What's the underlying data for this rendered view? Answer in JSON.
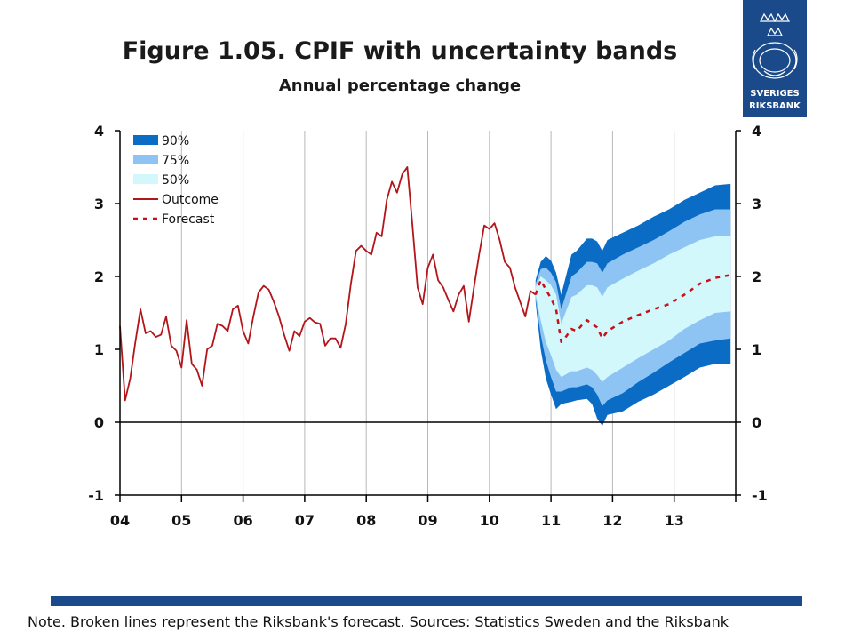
{
  "header": {
    "title": "Figure 1.05. CPIF with uncertainty bands",
    "subtitle": "Annual percentage change"
  },
  "logo": {
    "icon": "riksbank-crest-icon",
    "line1": "SVERIGES",
    "line2": "RIKSBANK"
  },
  "footer": {
    "note": "Note. Broken lines represent the Riksbank's forecast.  Sources: Statistics Sweden and the Riksbank",
    "bar_color": "#1b4a8a"
  },
  "chart_data": {
    "type": "line",
    "title": "Figure 1.05. CPIF with uncertainty bands",
    "subtitle": "Annual percentage change",
    "x_tick_labels": [
      "04",
      "05",
      "06",
      "07",
      "08",
      "09",
      "10",
      "11",
      "12",
      "13"
    ],
    "y_ticks": [
      -1,
      0,
      1,
      2,
      3,
      4
    ],
    "ylim": [
      -1,
      4
    ],
    "xlim": [
      "2004-01",
      "2013-12"
    ],
    "legend_position": "top-left",
    "grid": "vertical",
    "legend": [
      "90%",
      "75%",
      "50%",
      "Outcome",
      "Forecast"
    ],
    "colors": {
      "band90": "#0a6cc4",
      "band75": "#8ec4f4",
      "band50": "#d2f8fc",
      "outcome": "#b2151a",
      "forecast": "#c8101a"
    },
    "series": [
      {
        "name": "Outcome",
        "style": "solid",
        "points": [
          [
            "2004-01",
            1.32
          ],
          [
            "2004-02",
            0.3
          ],
          [
            "2004-03",
            0.6
          ],
          [
            "2004-04",
            1.1
          ],
          [
            "2004-05",
            1.55
          ],
          [
            "2004-06",
            1.22
          ],
          [
            "2004-07",
            1.25
          ],
          [
            "2004-08",
            1.17
          ],
          [
            "2004-09",
            1.2
          ],
          [
            "2004-10",
            1.45
          ],
          [
            "2004-11",
            1.05
          ],
          [
            "2004-12",
            0.98
          ],
          [
            "2005-01",
            0.75
          ],
          [
            "2005-02",
            1.4
          ],
          [
            "2005-03",
            0.8
          ],
          [
            "2005-04",
            0.72
          ],
          [
            "2005-05",
            0.5
          ],
          [
            "2005-06",
            1.0
          ],
          [
            "2005-07",
            1.05
          ],
          [
            "2005-08",
            1.35
          ],
          [
            "2005-09",
            1.32
          ],
          [
            "2005-10",
            1.25
          ],
          [
            "2005-11",
            1.55
          ],
          [
            "2005-12",
            1.6
          ],
          [
            "2006-01",
            1.25
          ],
          [
            "2006-02",
            1.08
          ],
          [
            "2006-03",
            1.45
          ],
          [
            "2006-04",
            1.78
          ],
          [
            "2006-05",
            1.87
          ],
          [
            "2006-06",
            1.82
          ],
          [
            "2006-07",
            1.65
          ],
          [
            "2006-08",
            1.45
          ],
          [
            "2006-09",
            1.2
          ],
          [
            "2006-10",
            0.98
          ],
          [
            "2006-11",
            1.25
          ],
          [
            "2006-12",
            1.18
          ],
          [
            "2007-01",
            1.38
          ],
          [
            "2007-02",
            1.43
          ],
          [
            "2007-03",
            1.37
          ],
          [
            "2007-04",
            1.35
          ],
          [
            "2007-05",
            1.05
          ],
          [
            "2007-06",
            1.15
          ],
          [
            "2007-07",
            1.15
          ],
          [
            "2007-08",
            1.02
          ],
          [
            "2007-09",
            1.35
          ],
          [
            "2007-10",
            1.9
          ],
          [
            "2007-11",
            2.35
          ],
          [
            "2007-12",
            2.42
          ],
          [
            "2008-01",
            2.35
          ],
          [
            "2008-02",
            2.3
          ],
          [
            "2008-03",
            2.6
          ],
          [
            "2008-04",
            2.55
          ],
          [
            "2008-05",
            3.05
          ],
          [
            "2008-06",
            3.3
          ],
          [
            "2008-07",
            3.15
          ],
          [
            "2008-08",
            3.4
          ],
          [
            "2008-09",
            3.5
          ],
          [
            "2008-10",
            2.7
          ],
          [
            "2008-11",
            1.85
          ],
          [
            "2008-12",
            1.62
          ],
          [
            "2009-01",
            2.12
          ],
          [
            "2009-02",
            2.3
          ],
          [
            "2009-03",
            1.95
          ],
          [
            "2009-04",
            1.85
          ],
          [
            "2009-05",
            1.68
          ],
          [
            "2009-06",
            1.52
          ],
          [
            "2009-07",
            1.75
          ],
          [
            "2009-08",
            1.87
          ],
          [
            "2009-09",
            1.38
          ],
          [
            "2009-10",
            1.85
          ],
          [
            "2009-11",
            2.3
          ],
          [
            "2009-12",
            2.7
          ],
          [
            "2010-01",
            2.65
          ],
          [
            "2010-02",
            2.73
          ],
          [
            "2010-03",
            2.5
          ],
          [
            "2010-04",
            2.2
          ],
          [
            "2010-05",
            2.12
          ],
          [
            "2010-06",
            1.85
          ],
          [
            "2010-07",
            1.65
          ],
          [
            "2010-08",
            1.45
          ],
          [
            "2010-09",
            1.8
          ],
          [
            "2010-10",
            1.75
          ]
        ]
      },
      {
        "name": "Forecast",
        "style": "dashed",
        "points": [
          [
            "2010-10",
            1.75
          ],
          [
            "2010-11",
            1.95
          ],
          [
            "2010-12",
            1.82
          ],
          [
            "2011-01",
            1.7
          ],
          [
            "2011-02",
            1.55
          ],
          [
            "2011-03",
            1.1
          ],
          [
            "2011-04",
            1.18
          ],
          [
            "2011-05",
            1.28
          ],
          [
            "2011-06",
            1.25
          ],
          [
            "2011-07",
            1.33
          ],
          [
            "2011-08",
            1.4
          ],
          [
            "2011-09",
            1.35
          ],
          [
            "2011-10",
            1.3
          ],
          [
            "2011-11",
            1.15
          ],
          [
            "2011-12",
            1.25
          ],
          [
            "2012-03",
            1.38
          ],
          [
            "2012-06",
            1.47
          ],
          [
            "2012-09",
            1.55
          ],
          [
            "2012-12",
            1.62
          ],
          [
            "2013-03",
            1.75
          ],
          [
            "2013-06",
            1.9
          ],
          [
            "2013-09",
            1.98
          ],
          [
            "2013-12",
            2.02
          ]
        ]
      }
    ],
    "bands": {
      "x": [
        "2010-10",
        "2010-11",
        "2010-12",
        "2011-01",
        "2011-02",
        "2011-03",
        "2011-05",
        "2011-06",
        "2011-08",
        "2011-09",
        "2011-10",
        "2011-11",
        "2011-12",
        "2012-03",
        "2012-06",
        "2012-09",
        "2012-12",
        "2013-03",
        "2013-06",
        "2013-09",
        "2013-12"
      ],
      "hi90": [
        1.95,
        2.2,
        2.28,
        2.22,
        2.05,
        1.75,
        2.3,
        2.35,
        2.52,
        2.52,
        2.48,
        2.35,
        2.5,
        2.6,
        2.7,
        2.82,
        2.92,
        3.05,
        3.15,
        3.25,
        3.27
      ],
      "hi75": [
        1.9,
        2.1,
        2.12,
        2.05,
        1.92,
        1.55,
        2.0,
        2.05,
        2.2,
        2.2,
        2.18,
        2.05,
        2.18,
        2.3,
        2.4,
        2.5,
        2.62,
        2.75,
        2.85,
        2.92,
        2.92
      ],
      "hi50": [
        1.85,
        2.0,
        1.95,
        1.88,
        1.75,
        1.35,
        1.72,
        1.75,
        1.88,
        1.88,
        1.85,
        1.72,
        1.85,
        1.97,
        2.08,
        2.18,
        2.3,
        2.4,
        2.5,
        2.55,
        2.55
      ],
      "lo50": [
        1.75,
        1.4,
        1.1,
        0.92,
        0.72,
        0.62,
        0.7,
        0.7,
        0.75,
        0.72,
        0.65,
        0.55,
        0.62,
        0.75,
        0.88,
        1.0,
        1.12,
        1.28,
        1.4,
        1.5,
        1.52
      ],
      "lo75": [
        1.7,
        1.2,
        0.85,
        0.62,
        0.42,
        0.42,
        0.48,
        0.48,
        0.52,
        0.48,
        0.38,
        0.22,
        0.3,
        0.4,
        0.55,
        0.68,
        0.82,
        0.95,
        1.08,
        1.12,
        1.15
      ],
      "lo90": [
        1.65,
        1.0,
        0.6,
        0.38,
        0.18,
        0.25,
        0.28,
        0.3,
        0.32,
        0.25,
        0.05,
        -0.05,
        0.1,
        0.15,
        0.28,
        0.38,
        0.5,
        0.62,
        0.75,
        0.8,
        0.8
      ]
    }
  }
}
